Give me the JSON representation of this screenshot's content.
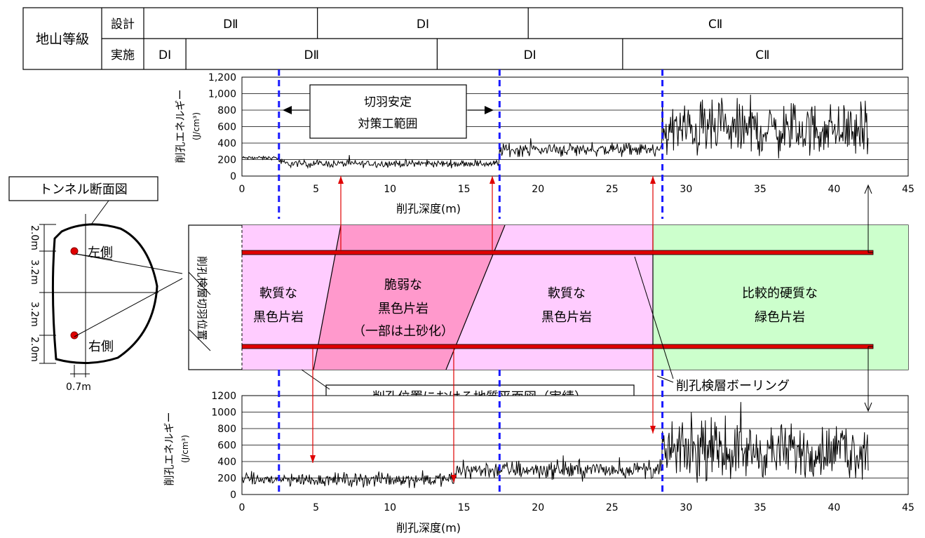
{
  "grade_table": {
    "header": "地山等級",
    "design_label": "設計",
    "actual_label": "実施",
    "design_cells": [
      {
        "label": "DⅡ",
        "from": 0,
        "to": 10.3
      },
      {
        "label": "DⅠ",
        "from": 10.3,
        "to": 22.8
      },
      {
        "label": "CⅡ",
        "from": 22.8,
        "to": 45
      }
    ],
    "actual_cells": [
      {
        "label": "DⅠ",
        "from": 0,
        "to": 2.5
      },
      {
        "label": "DⅡ",
        "from": 2.5,
        "to": 17.4
      },
      {
        "label": "DⅠ",
        "from": 17.4,
        "to": 28.4
      },
      {
        "label": "CⅡ",
        "from": 28.4,
        "to": 45
      }
    ]
  },
  "boundaries": [
    2.5,
    17.4,
    28.4
  ],
  "section": {
    "title": "トンネル断面図",
    "left_label": "左側",
    "right_label": "右側",
    "dims": [
      "2.0m",
      "3.2m",
      "3.2m",
      "2.0m"
    ],
    "offset": "0.7m"
  },
  "geology": {
    "axis_label": "削孔検層切羽位置",
    "zones": [
      {
        "lines": [
          "軟質な",
          "黒色片岩"
        ],
        "color": "#ffccff"
      },
      {
        "lines": [
          "脆弱な",
          "黒色片岩",
          "（一部は土砂化）"
        ],
        "color": "#ff99cc"
      },
      {
        "lines": [
          "軟質な",
          "黒色片岩"
        ],
        "color": "#ffccff"
      },
      {
        "lines": [
          "比較的硬質な",
          "緑色片岩"
        ],
        "color": "#ccffcc"
      }
    ],
    "plan_label": "削孔位置における地質平面図（実績）",
    "boring_label": "削孔検層ボーリング"
  },
  "annotation": {
    "lines": [
      "切羽安定",
      "対策工範囲"
    ]
  },
  "chart_data": [
    {
      "type": "line",
      "name": "left",
      "ylabel": "削孔エネルギー",
      "yunit": "(J/cm³)",
      "xlabel": "削孔深度(m)",
      "xlim": [
        0,
        45
      ],
      "ylim": [
        0,
        1200
      ],
      "xticks": [
        0,
        5,
        10,
        15,
        20,
        25,
        30,
        35,
        40,
        45
      ],
      "yticks": [
        0,
        200,
        400,
        600,
        800,
        1000,
        1200
      ],
      "ytick_labels": [
        "0",
        "200",
        "400",
        "600",
        "800",
        "1,000",
        "1,200"
      ],
      "grid": true,
      "segments": [
        {
          "from": 0,
          "to": 2.5,
          "base": 220,
          "amp": 40
        },
        {
          "from": 2.5,
          "to": 17.4,
          "base": 150,
          "amp": 80
        },
        {
          "from": 17.4,
          "to": 28.4,
          "base": 320,
          "amp": 150
        },
        {
          "from": 28.4,
          "to": 42.3,
          "base": 560,
          "amp": 600
        }
      ]
    },
    {
      "type": "line",
      "name": "right",
      "ylabel": "削孔エネルギー",
      "yunit": "(J/cm³)",
      "xlabel": "削孔深度(m)",
      "xlim": [
        0,
        45
      ],
      "ylim": [
        0,
        1200
      ],
      "xticks": [
        0,
        5,
        10,
        15,
        20,
        25,
        30,
        35,
        40,
        45
      ],
      "yticks": [
        0,
        200,
        400,
        600,
        800,
        1000,
        1200
      ],
      "ytick_labels": [
        "0",
        "200",
        "400",
        "600",
        "800",
        "1000",
        "1200"
      ],
      "grid": true,
      "segments": [
        {
          "from": 0,
          "to": 14.5,
          "base": 180,
          "amp": 150
        },
        {
          "from": 14.5,
          "to": 28.4,
          "base": 300,
          "amp": 200
        },
        {
          "from": 28.4,
          "to": 42.3,
          "base": 520,
          "amp": 600
        }
      ]
    }
  ]
}
